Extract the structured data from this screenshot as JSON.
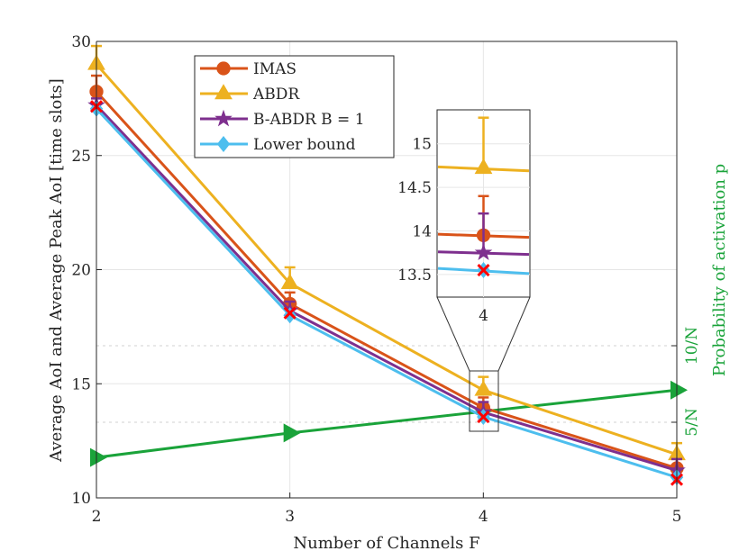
{
  "chart_data": {
    "type": "line",
    "xlabel": "Number of Channels F",
    "ylabel": "Average AoI and Average Peak AoI [time slots]",
    "ylabel_right": "Probability of activation p",
    "xlim": [
      2,
      5
    ],
    "ylim": [
      10,
      30
    ],
    "xticks": [
      "2",
      "3",
      "4",
      "5"
    ],
    "yticks": [
      "10",
      "15",
      "20",
      "25",
      "30"
    ],
    "yticks_right": [
      {
        "value": 5,
        "label": "5/N"
      },
      {
        "value": 10,
        "label": "10/N"
      }
    ],
    "grid": true,
    "legend_position": "top-left",
    "x": [
      2,
      3,
      4,
      5
    ],
    "series": [
      {
        "name": "IMAS",
        "color": "#D95319",
        "marker": "circle",
        "values": [
          27.8,
          18.5,
          13.95,
          11.3
        ],
        "upper": [
          28.5,
          19.0,
          14.4,
          11.8
        ]
      },
      {
        "name": "ABDR",
        "color": "#EDB120",
        "marker": "triangle",
        "values": [
          29.0,
          19.4,
          14.72,
          11.9
        ],
        "upper": [
          29.8,
          20.1,
          15.3,
          12.4
        ]
      },
      {
        "name": "B-ABDR B = 1",
        "color": "#7E2F8E",
        "marker": "star",
        "values": [
          27.2,
          18.2,
          13.75,
          11.2
        ],
        "upper": [
          27.5,
          18.6,
          14.2,
          11.7
        ]
      },
      {
        "name": "Lower bound",
        "color": "#4DBEEE",
        "marker": "diamond",
        "values": [
          27.05,
          18.0,
          13.55,
          10.9
        ]
      }
    ],
    "extra_markers": {
      "color": "#FF0000",
      "marker": "x",
      "values": [
        27.15,
        18.1,
        13.55,
        10.8
      ]
    },
    "right_axis_series": {
      "color": "#1AA33A",
      "marker": "triangle-right",
      "x": [
        2,
        3,
        5
      ],
      "values": [
        2.7,
        4.3,
        7.1
      ]
    },
    "inset": {
      "xlim": [
        3.9,
        4.1
      ],
      "ylim": [
        13.24,
        15.39
      ],
      "xticks": [
        "4"
      ],
      "yticks": [
        "13.5",
        "14",
        "14.5",
        "15"
      ]
    }
  }
}
